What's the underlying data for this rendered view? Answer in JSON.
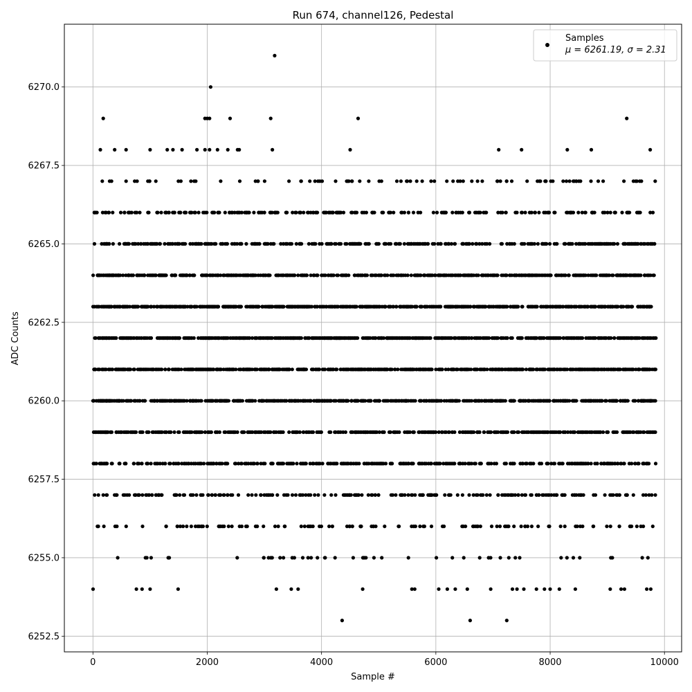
{
  "chart_data": {
    "type": "scatter",
    "title": "Run 674, channel126, Pedestal",
    "xlabel": "Sample #",
    "ylabel": "ADC Counts",
    "xlim": [
      -500,
      10300
    ],
    "ylim": [
      6252.0,
      6272.0
    ],
    "x_ticks": [
      0,
      2000,
      4000,
      6000,
      8000,
      10000
    ],
    "y_ticks": [
      6252.5,
      6255.0,
      6257.5,
      6260.0,
      6262.5,
      6265.0,
      6267.5,
      6270.0
    ],
    "x_tick_labels": [
      "0",
      "2000",
      "4000",
      "6000",
      "8000",
      "10000"
    ],
    "y_tick_labels": [
      "6252.5",
      "6255.0",
      "6257.5",
      "6260.0",
      "6262.5",
      "6265.0",
      "6267.5",
      "6270.0"
    ],
    "grid": true,
    "legend_position": "top-right",
    "point_color": "#000000",
    "series": [
      {
        "name": "Samples",
        "stats_label": "μ = 6261.19, σ = 2.31",
        "points": [
          [
            3180,
            6271
          ],
          [
            2060,
            6270
          ],
          [
            180,
            6269
          ],
          [
            1960,
            6269
          ],
          [
            2000,
            6269
          ],
          [
            2040,
            6269
          ],
          [
            2400,
            6269
          ],
          [
            3110,
            6269
          ],
          [
            4640,
            6269
          ],
          [
            9340,
            6269
          ],
          [
            130,
            6268
          ],
          [
            380,
            6268
          ],
          [
            580,
            6268
          ],
          [
            1000,
            6268
          ],
          [
            1300,
            6268
          ],
          [
            1400,
            6268
          ],
          [
            1560,
            6268
          ],
          [
            1820,
            6268
          ],
          [
            1960,
            6268
          ],
          [
            2040,
            6268
          ],
          [
            2180,
            6268
          ],
          [
            2360,
            6268
          ],
          [
            2530,
            6268
          ],
          [
            2560,
            6268
          ],
          [
            3140,
            6268
          ],
          [
            4500,
            6268
          ],
          [
            7100,
            6268
          ],
          [
            7500,
            6268
          ],
          [
            8300,
            6268
          ],
          [
            8720,
            6268
          ],
          [
            9750,
            6268
          ],
          [
            2,
            6254
          ],
          [
            760,
            6254
          ],
          [
            860,
            6254
          ],
          [
            1000,
            6254
          ],
          [
            1490,
            6254
          ],
          [
            3210,
            6254
          ],
          [
            3470,
            6254
          ],
          [
            3590,
            6254
          ],
          [
            4720,
            6254
          ],
          [
            5580,
            6254
          ],
          [
            5630,
            6254
          ],
          [
            6050,
            6254
          ],
          [
            6200,
            6254
          ],
          [
            6340,
            6254
          ],
          [
            6550,
            6254
          ],
          [
            6960,
            6254
          ],
          [
            7340,
            6254
          ],
          [
            7420,
            6254
          ],
          [
            7540,
            6254
          ],
          [
            7760,
            6254
          ],
          [
            7900,
            6254
          ],
          [
            8000,
            6254
          ],
          [
            8160,
            6254
          ],
          [
            8440,
            6254
          ],
          [
            9050,
            6254
          ],
          [
            9240,
            6254
          ],
          [
            9300,
            6254
          ],
          [
            9690,
            6254
          ],
          [
            9760,
            6254
          ],
          [
            4360,
            6253
          ],
          [
            6600,
            6253
          ],
          [
            7240,
            6253
          ]
        ],
        "row_levels": [
          {
            "y": 6267,
            "count": 90
          },
          {
            "y": 6266,
            "count": 230
          },
          {
            "y": 6265,
            "count": 340
          },
          {
            "y": 6264,
            "count": 520
          },
          {
            "y": 6263,
            "count": 620
          },
          {
            "y": 6262,
            "count": 680
          },
          {
            "y": 6261,
            "count": 640
          },
          {
            "y": 6260,
            "count": 600
          },
          {
            "y": 6259,
            "count": 460
          },
          {
            "y": 6258,
            "count": 360
          },
          {
            "y": 6257,
            "count": 230
          },
          {
            "y": 6256,
            "count": 120
          },
          {
            "y": 6255,
            "count": 50
          }
        ]
      }
    ]
  }
}
